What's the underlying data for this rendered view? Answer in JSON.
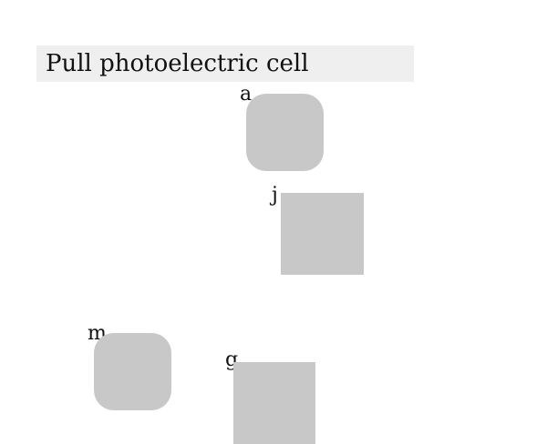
{
  "task": {
    "instruction": "Pull photoelectric cell"
  },
  "shapes": [
    {
      "label": "a",
      "kind": "rounded-square"
    },
    {
      "label": "j",
      "kind": "square"
    },
    {
      "label": "m",
      "kind": "rounded-square"
    },
    {
      "label": "g",
      "kind": "square"
    }
  ],
  "colors": {
    "title_bg": "#efefef",
    "shape_fill": "#c8c8c8"
  }
}
